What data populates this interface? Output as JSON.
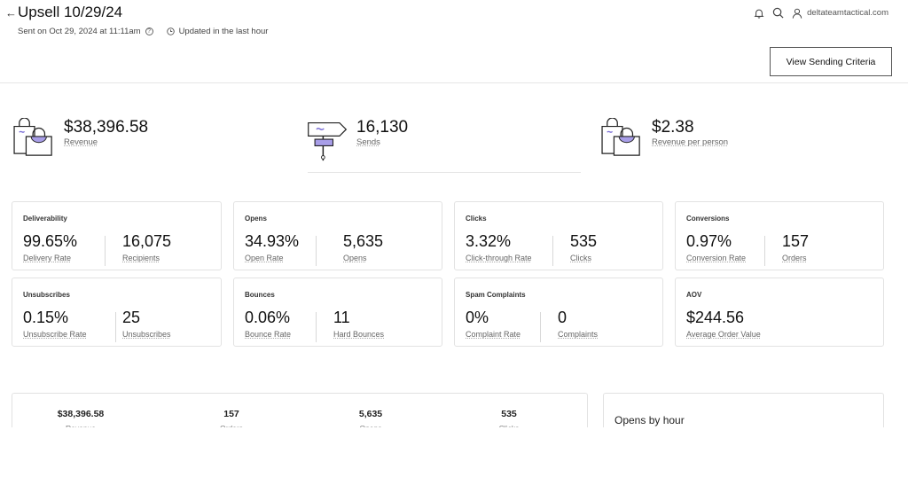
{
  "header": {
    "back_icon": "←",
    "title": "Upsell 10/29/24",
    "sent_text": "Sent on Oct 29, 2024 at 11:11am",
    "help_icon": "?",
    "updated_text": "Updated in the last hour",
    "account": "deltateamtactical.com",
    "criteria_button": "View Sending Criteria"
  },
  "summary": [
    {
      "value": "$38,396.58",
      "label": "Revenue",
      "icon": "shopping-bags-icon"
    },
    {
      "value": "16,130",
      "label": "Sends",
      "icon": "signpost-icon"
    },
    {
      "value": "$2.38",
      "label": "Revenue per person",
      "icon": "shopping-bags-icon"
    }
  ],
  "cards": [
    {
      "title": "Deliverability",
      "m1": {
        "value": "99.65%",
        "label": "Delivery Rate"
      },
      "m2": {
        "value": "16,075",
        "label": "Recipients"
      }
    },
    {
      "title": "Opens",
      "m1": {
        "value": "34.93%",
        "label": "Open Rate"
      },
      "m2": {
        "value": "5,635",
        "label": "Opens"
      }
    },
    {
      "title": "Clicks",
      "m1": {
        "value": "3.32%",
        "label": "Click-through Rate"
      },
      "m2": {
        "value": "535",
        "label": "Clicks"
      }
    },
    {
      "title": "Conversions",
      "m1": {
        "value": "0.97%",
        "label": "Conversion Rate"
      },
      "m2": {
        "value": "157",
        "label": "Orders"
      }
    },
    {
      "title": "Unsubscribes",
      "m1": {
        "value": "0.15%",
        "label": "Unsubscribe Rate"
      },
      "m2": {
        "value": "25",
        "label": "Unsubscribes"
      }
    },
    {
      "title": "Bounces",
      "m1": {
        "value": "0.06%",
        "label": "Bounce Rate"
      },
      "m2": {
        "value": "11",
        "label": "Hard Bounces"
      }
    },
    {
      "title": "Spam Complaints",
      "m1": {
        "value": "0%",
        "label": "Complaint Rate"
      },
      "m2": {
        "value": "0",
        "label": "Complaints"
      }
    },
    {
      "title": "AOV",
      "m1": {
        "value": "$244.56",
        "label": "Average Order Value"
      }
    }
  ],
  "bottom_stats": [
    {
      "value": "$38,396.58",
      "label": "Revenue"
    },
    {
      "value": "157",
      "label": "Orders"
    },
    {
      "value": "5,635",
      "label": "Opens"
    },
    {
      "value": "535",
      "label": "Clicks"
    }
  ],
  "opens_by_hour": {
    "title": "Opens by hour"
  },
  "colors": {
    "accent": "#7b6fd6",
    "border": "#e2e2e2"
  }
}
